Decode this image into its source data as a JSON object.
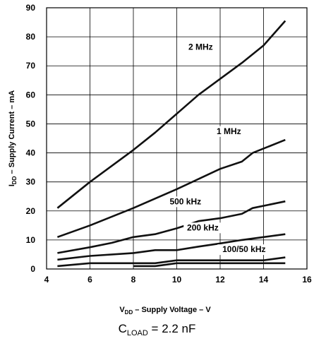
{
  "chart_data": {
    "type": "line",
    "x_label": {
      "main": "V",
      "sub": "DD",
      "rest": " – Supply Voltage – V"
    },
    "y_label": {
      "main": "I",
      "sub": "DD",
      "rest": " – Supply Current – mA"
    },
    "xlim": [
      4,
      16
    ],
    "ylim": [
      0,
      90
    ],
    "x_ticks": [
      4,
      6,
      8,
      10,
      12,
      14,
      16
    ],
    "y_ticks": [
      0,
      10,
      20,
      30,
      40,
      50,
      60,
      70,
      80,
      90
    ],
    "grid": true,
    "series": [
      {
        "name": "2 MHz",
        "x": [
          4.5,
          6,
          8,
          9,
          10,
          11,
          12,
          13,
          14,
          15
        ],
        "y": [
          21,
          30,
          41,
          47,
          53.5,
          60,
          65.5,
          71,
          77,
          85.5
        ]
      },
      {
        "name": "1 MHz",
        "x": [
          4.5,
          6,
          8,
          10,
          11,
          12,
          13,
          13.5,
          15
        ],
        "y": [
          11,
          15,
          21,
          27.5,
          31,
          34.5,
          37,
          40,
          44.5
        ]
      },
      {
        "name": "500 kHz",
        "x": [
          4.5,
          6,
          7,
          8,
          9,
          10,
          11,
          12,
          13,
          13.5,
          15
        ],
        "y": [
          5.5,
          7.5,
          9,
          11,
          12,
          14,
          16.5,
          17.5,
          19,
          21,
          23.3
        ]
      },
      {
        "name": "200 kHz",
        "x": [
          4.5,
          6,
          8,
          9,
          10,
          11,
          12,
          13,
          14,
          15
        ],
        "y": [
          3.2,
          4.5,
          5.5,
          6.5,
          6.5,
          7.7,
          8.8,
          10,
          11,
          12
        ]
      },
      {
        "name": "100 kHz",
        "x": [
          4.5,
          6,
          8,
          9,
          10,
          11,
          12,
          13,
          14,
          15
        ],
        "y": [
          1,
          2,
          2,
          2,
          3,
          3,
          3,
          3,
          3,
          4
        ]
      },
      {
        "name": "50 kHz",
        "x": [
          8,
          9,
          10,
          11,
          12,
          13,
          14,
          15
        ],
        "y": [
          1,
          1,
          2,
          2,
          2,
          2,
          2,
          2
        ]
      }
    ],
    "series_labels": [
      {
        "text": "2 MHz",
        "x": 11.1,
        "y": 75.5
      },
      {
        "text": "1 MHz",
        "x": 12.4,
        "y": 46.5
      },
      {
        "text": "500 kHz",
        "x": 10.4,
        "y": 22.3
      },
      {
        "text": "200 kHz",
        "x": 11.2,
        "y": 13.3
      },
      {
        "text": "100/50 kHz",
        "x": 13.1,
        "y": 5.8
      }
    ],
    "caption": {
      "main": "C",
      "sub": "LOAD",
      "rest": " = 2.2 nF"
    }
  }
}
